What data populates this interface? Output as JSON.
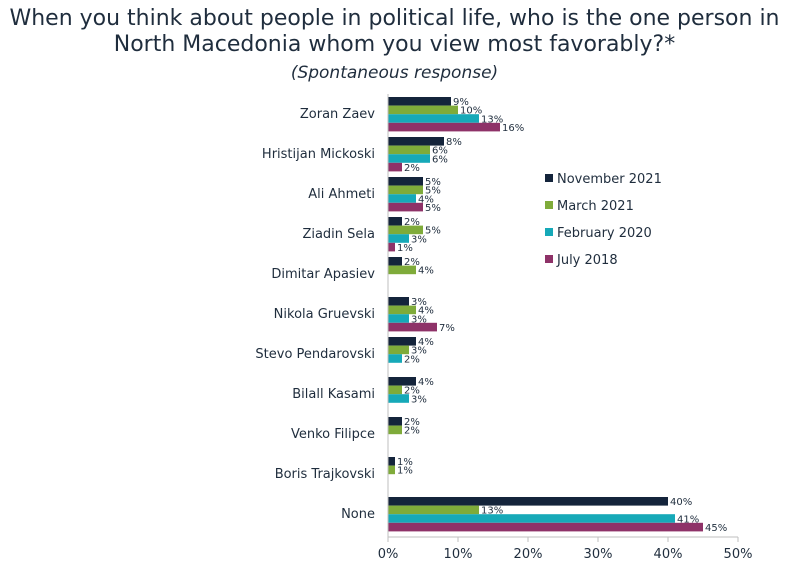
{
  "chart_data": {
    "type": "bar",
    "orientation": "horizontal",
    "title": "When you think about people in political life, who is the one person in North Macedonia whom you view most favorably?*",
    "subtitle": "(Spontaneous response)",
    "categories": [
      "Zoran Zaev",
      "Hristijan Mickoski",
      "Ali Ahmeti",
      "Ziadin Sela",
      "Dimitar Apasiev",
      "Nikola Gruevski",
      "Stevo Pendarovski",
      "Bilall Kasami",
      "Venko Filipce",
      "Boris Trajkovski",
      "None"
    ],
    "series": [
      {
        "name": "November 2021",
        "color": "#14243b",
        "values": [
          9,
          8,
          5,
          2,
          2,
          3,
          4,
          4,
          2,
          1,
          40
        ]
      },
      {
        "name": "March 2021",
        "color": "#7fab3a",
        "values": [
          10,
          6,
          5,
          5,
          4,
          4,
          3,
          2,
          2,
          1,
          13
        ]
      },
      {
        "name": "February 2020",
        "color": "#16a9b8",
        "values": [
          13,
          6,
          4,
          3,
          null,
          3,
          2,
          3,
          null,
          null,
          41
        ]
      },
      {
        "name": "July 2018",
        "color": "#8e3268",
        "values": [
          16,
          2,
          5,
          1,
          null,
          7,
          null,
          null,
          null,
          null,
          45
        ]
      }
    ],
    "xlim": [
      0,
      50
    ],
    "xticks": [
      "0%",
      "10%",
      "20%",
      "30%",
      "40%",
      "50%"
    ],
    "value_suffix": "%",
    "legend_position": "right",
    "grid": false
  }
}
